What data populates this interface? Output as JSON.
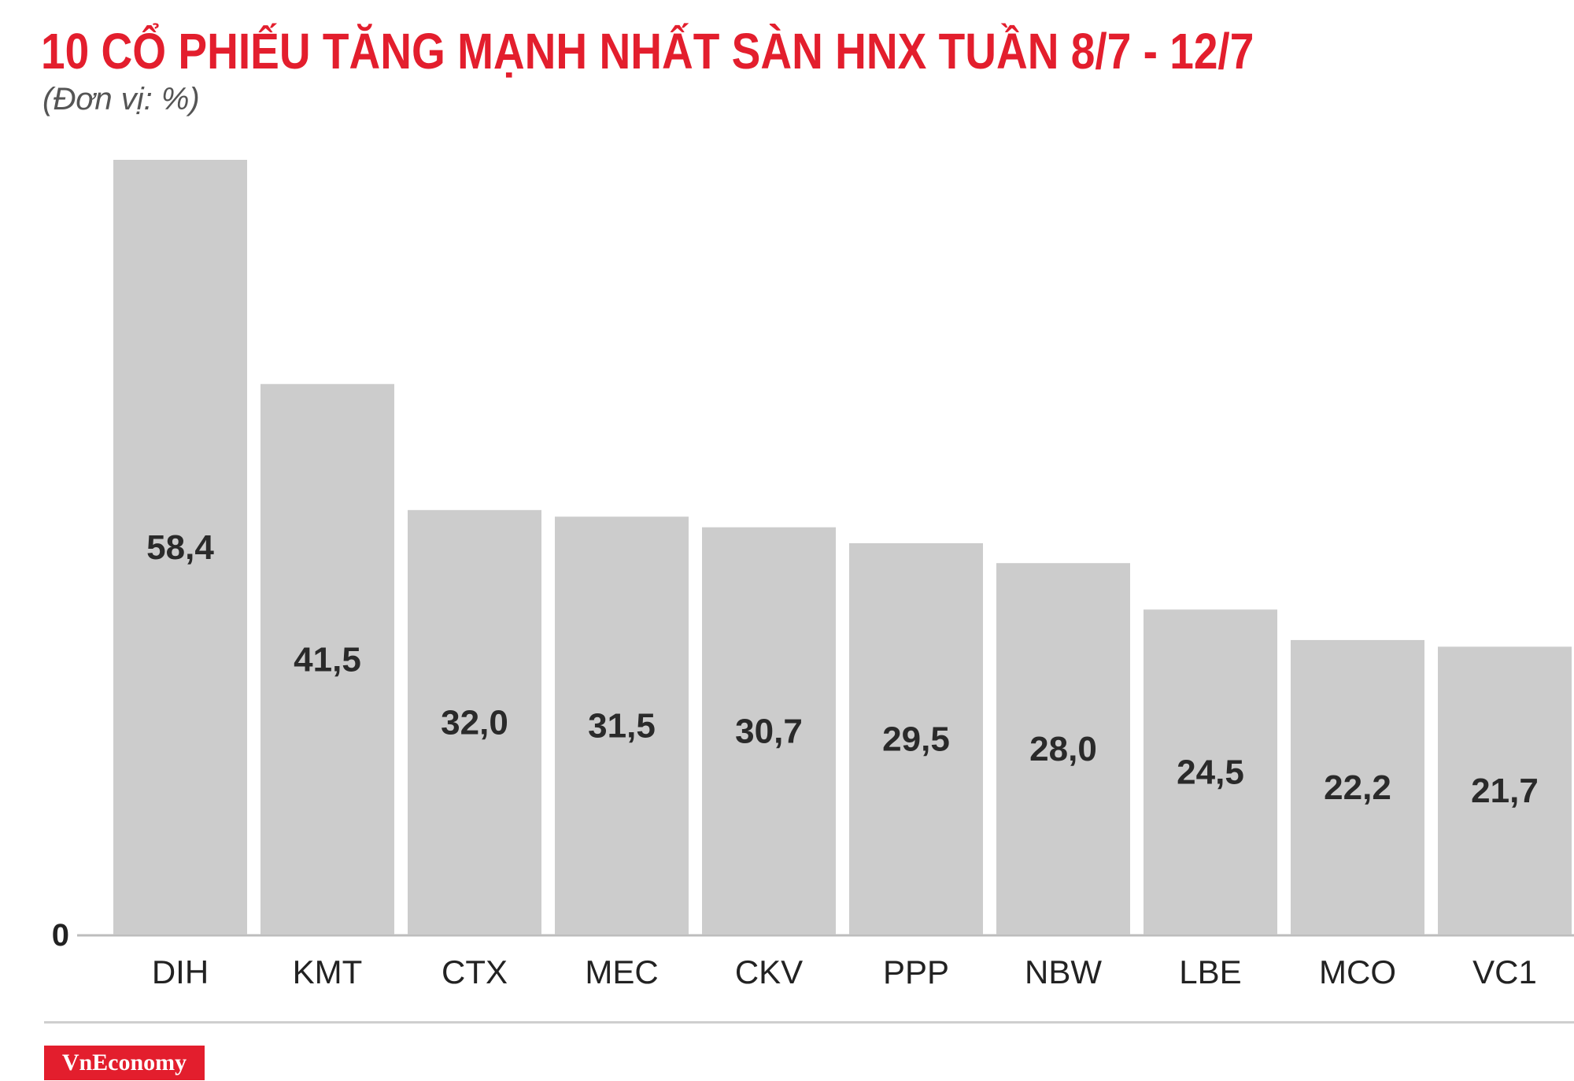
{
  "header": {
    "title": "10 CỔ PHIẾU TĂNG MẠNH NHẤT SÀN HNX TUẦN 8/7 - 12/7",
    "subtitle": "(Đơn vị: %)"
  },
  "footer": {
    "brand": "VnEconomy"
  },
  "colors": {
    "title": "#e31e2d",
    "bar": "#cccccc",
    "brand_bg": "#e31e2d"
  },
  "chart_data": {
    "type": "bar",
    "title": "10 CỔ PHIẾU TĂNG MẠNH NHẤT SÀN HNX TUẦN 8/7 - 12/7",
    "subtitle": "(Đơn vị: %)",
    "categories": [
      "DIH",
      "KMT",
      "CTX",
      "MEC",
      "CKV",
      "PPP",
      "NBW",
      "LBE",
      "MCO",
      "VC1"
    ],
    "values": [
      58.4,
      41.5,
      32.0,
      31.5,
      30.7,
      29.5,
      28.0,
      24.5,
      22.2,
      21.7
    ],
    "value_labels": [
      "58,4",
      "41,5",
      "32,0",
      "31,5",
      "30,7",
      "29,5",
      "28,0",
      "24,5",
      "22,2",
      "21,7"
    ],
    "y_tick_labels": [
      "0"
    ],
    "ylim": [
      0,
      58.4
    ],
    "grid": false,
    "legend": "none"
  }
}
